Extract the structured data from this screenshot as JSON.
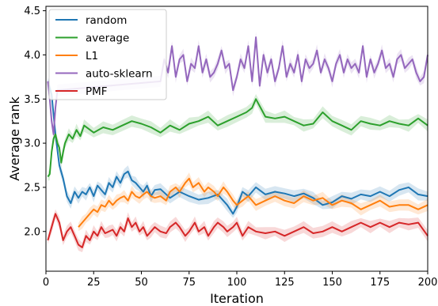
{
  "chart_data": {
    "type": "line",
    "title": "",
    "xlabel": "Iteration",
    "ylabel": "Average rank",
    "xlim": [
      0,
      200
    ],
    "ylim": [
      1.55,
      4.55
    ],
    "xticks": [
      0,
      25,
      50,
      75,
      100,
      125,
      150,
      175,
      200
    ],
    "yticks": [
      2.0,
      2.5,
      3.0,
      3.5,
      4.0,
      4.5
    ],
    "xtick_labels": [
      "0",
      "25",
      "50",
      "75",
      "100",
      "125",
      "150",
      "175",
      "200"
    ],
    "ytick_labels": [
      "2.0",
      "2.5",
      "3.0",
      "3.5",
      "4.0",
      "4.5"
    ],
    "grid": false,
    "legend_position": "top-left",
    "band": "shaded confidence band around each line",
    "series": [
      {
        "name": "random",
        "color": "#1f77b4",
        "x": [
          1,
          3,
          5,
          7,
          9,
          11,
          13,
          15,
          17,
          19,
          21,
          23,
          25,
          27,
          29,
          31,
          33,
          35,
          37,
          39,
          41,
          43,
          45,
          47,
          49,
          51,
          53,
          55,
          57,
          60,
          65,
          70,
          75,
          80,
          85,
          90,
          95,
          98,
          100,
          103,
          106,
          110,
          115,
          120,
          125,
          130,
          135,
          140,
          145,
          150,
          155,
          160,
          165,
          170,
          175,
          180,
          185,
          190,
          195,
          200
        ],
        "values": [
          3.7,
          3.55,
          3.1,
          2.75,
          2.6,
          2.4,
          2.32,
          2.45,
          2.38,
          2.45,
          2.42,
          2.5,
          2.4,
          2.52,
          2.47,
          2.42,
          2.55,
          2.5,
          2.62,
          2.55,
          2.65,
          2.68,
          2.58,
          2.55,
          2.5,
          2.45,
          2.52,
          2.4,
          2.47,
          2.48,
          2.38,
          2.45,
          2.4,
          2.36,
          2.38,
          2.42,
          2.3,
          2.2,
          2.28,
          2.45,
          2.4,
          2.5,
          2.42,
          2.45,
          2.43,
          2.4,
          2.43,
          2.38,
          2.3,
          2.33,
          2.4,
          2.37,
          2.42,
          2.4,
          2.45,
          2.4,
          2.47,
          2.5,
          2.42,
          2.4
        ]
      },
      {
        "name": "average",
        "color": "#2ca02c",
        "x": [
          1,
          2,
          3,
          4,
          5,
          6,
          7,
          8,
          9,
          10,
          12,
          14,
          16,
          18,
          20,
          25,
          30,
          35,
          40,
          45,
          50,
          55,
          60,
          65,
          70,
          75,
          80,
          85,
          90,
          95,
          100,
          105,
          108,
          110,
          115,
          120,
          125,
          130,
          135,
          140,
          145,
          150,
          155,
          160,
          165,
          170,
          175,
          180,
          185,
          190,
          195,
          200
        ],
        "values": [
          2.62,
          2.65,
          2.9,
          3.05,
          3.1,
          3.0,
          2.95,
          2.78,
          2.9,
          3.0,
          3.1,
          3.05,
          3.15,
          3.08,
          3.2,
          3.12,
          3.18,
          3.15,
          3.2,
          3.25,
          3.22,
          3.18,
          3.12,
          3.2,
          3.15,
          3.22,
          3.25,
          3.3,
          3.2,
          3.25,
          3.3,
          3.35,
          3.4,
          3.5,
          3.3,
          3.28,
          3.3,
          3.25,
          3.2,
          3.22,
          3.35,
          3.25,
          3.2,
          3.15,
          3.25,
          3.22,
          3.2,
          3.25,
          3.22,
          3.2,
          3.28,
          3.2
        ]
      },
      {
        "name": "L1",
        "color": "#ff7f0e",
        "x": [
          17,
          19,
          21,
          23,
          25,
          27,
          29,
          31,
          33,
          35,
          37,
          39,
          41,
          43,
          45,
          47,
          49,
          51,
          53,
          55,
          57,
          60,
          63,
          65,
          68,
          70,
          73,
          75,
          77,
          80,
          83,
          85,
          88,
          90,
          93,
          95,
          98,
          100,
          103,
          106,
          110,
          115,
          120,
          125,
          130,
          135,
          140,
          145,
          150,
          155,
          160,
          165,
          170,
          175,
          180,
          185,
          190,
          195,
          200
        ],
        "values": [
          2.05,
          2.1,
          2.15,
          2.2,
          2.25,
          2.22,
          2.3,
          2.28,
          2.35,
          2.3,
          2.35,
          2.38,
          2.4,
          2.35,
          2.45,
          2.4,
          2.38,
          2.42,
          2.45,
          2.4,
          2.38,
          2.4,
          2.35,
          2.45,
          2.5,
          2.45,
          2.55,
          2.6,
          2.5,
          2.55,
          2.45,
          2.5,
          2.45,
          2.4,
          2.5,
          2.45,
          2.35,
          2.3,
          2.35,
          2.4,
          2.3,
          2.35,
          2.4,
          2.35,
          2.32,
          2.4,
          2.35,
          2.38,
          2.3,
          2.35,
          2.32,
          2.25,
          2.3,
          2.35,
          2.28,
          2.3,
          2.3,
          2.25,
          2.3
        ]
      },
      {
        "name": "auto-sklearn",
        "color": "#9467bd",
        "x": [
          1,
          2,
          3,
          4,
          5,
          6,
          60,
          62,
          64,
          66,
          68,
          70,
          72,
          74,
          76,
          78,
          80,
          82,
          84,
          86,
          88,
          90,
          92,
          94,
          96,
          98,
          100,
          102,
          104,
          106,
          108,
          110,
          112,
          114,
          116,
          118,
          120,
          122,
          124,
          126,
          128,
          130,
          132,
          134,
          136,
          138,
          140,
          142,
          144,
          146,
          148,
          150,
          152,
          154,
          156,
          158,
          160,
          162,
          164,
          166,
          168,
          170,
          172,
          174,
          176,
          178,
          180,
          182,
          184,
          186,
          188,
          190,
          192,
          194,
          196,
          198,
          200
        ],
        "values": [
          3.7,
          3.5,
          3.25,
          3.1,
          3.4,
          3.6,
          3.7,
          3.95,
          3.8,
          4.1,
          3.75,
          3.95,
          4.0,
          3.7,
          3.9,
          3.85,
          4.1,
          3.8,
          3.95,
          3.75,
          3.8,
          3.9,
          4.05,
          3.85,
          3.9,
          3.6,
          3.75,
          3.95,
          3.85,
          4.1,
          3.7,
          4.2,
          3.65,
          4.0,
          3.8,
          3.95,
          3.7,
          3.85,
          4.1,
          3.75,
          3.9,
          3.8,
          4.0,
          3.7,
          3.95,
          3.85,
          3.9,
          4.05,
          3.8,
          3.95,
          3.85,
          3.7,
          3.9,
          4.0,
          3.8,
          3.95,
          3.85,
          3.9,
          3.8,
          4.1,
          3.75,
          3.95,
          3.8,
          3.9,
          4.05,
          3.85,
          3.9,
          3.75,
          3.95,
          4.0,
          3.85,
          3.9,
          3.95,
          3.8,
          3.7,
          3.75,
          4.0
        ]
      },
      {
        "name": "PMF",
        "color": "#d62728",
        "x": [
          1,
          3,
          5,
          7,
          9,
          11,
          13,
          15,
          17,
          19,
          21,
          23,
          25,
          27,
          29,
          31,
          33,
          35,
          37,
          39,
          41,
          43,
          45,
          47,
          49,
          51,
          53,
          55,
          57,
          60,
          63,
          65,
          68,
          70,
          73,
          75,
          78,
          80,
          83,
          85,
          88,
          90,
          93,
          95,
          98,
          100,
          103,
          106,
          110,
          115,
          120,
          125,
          130,
          135,
          140,
          145,
          150,
          155,
          160,
          165,
          170,
          175,
          180,
          185,
          190,
          195,
          200
        ],
        "values": [
          1.9,
          2.05,
          2.2,
          2.1,
          1.9,
          2.0,
          2.05,
          1.95,
          1.85,
          1.82,
          1.95,
          1.9,
          2.0,
          1.95,
          2.05,
          1.98,
          2.0,
          2.02,
          1.95,
          2.05,
          2.0,
          2.15,
          2.05,
          2.1,
          2.0,
          2.05,
          1.95,
          2.0,
          2.05,
          2.0,
          1.98,
          2.05,
          2.1,
          2.05,
          1.95,
          2.0,
          2.1,
          2.0,
          2.05,
          1.95,
          2.05,
          2.1,
          2.05,
          2.0,
          2.05,
          2.1,
          1.95,
          2.05,
          2.0,
          1.98,
          2.0,
          1.95,
          2.0,
          2.05,
          1.98,
          2.0,
          2.05,
          2.0,
          2.05,
          2.1,
          2.05,
          2.1,
          2.05,
          2.1,
          2.08,
          2.1,
          1.95
        ]
      }
    ]
  }
}
